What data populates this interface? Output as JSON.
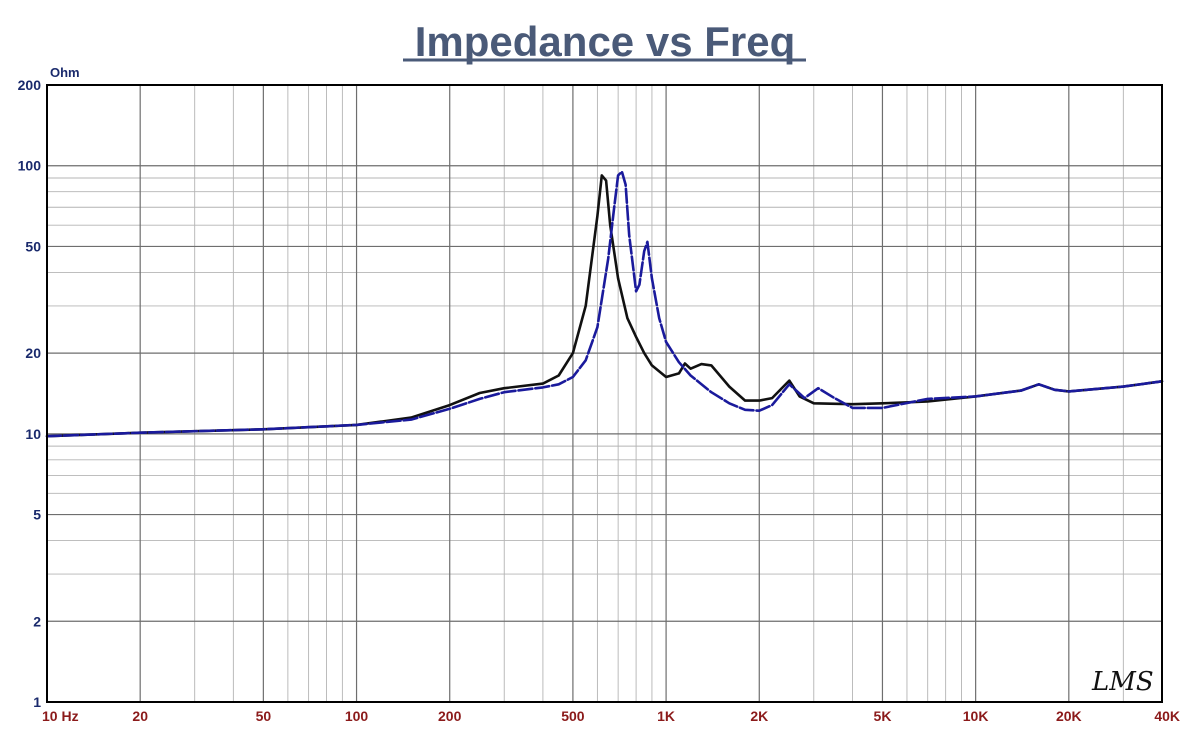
{
  "chart_data": {
    "type": "line",
    "title": "Impedance vs Freq",
    "ylabel": "Ohm",
    "x_scale": "log",
    "y_scale": "log",
    "xlim": [
      10,
      40000
    ],
    "ylim": [
      1,
      200
    ],
    "grid": true,
    "legend": "none",
    "x_ticks": [
      {
        "value": 10,
        "label": "10  Hz"
      },
      {
        "value": 20,
        "label": "20"
      },
      {
        "value": 50,
        "label": "50"
      },
      {
        "value": 100,
        "label": "100"
      },
      {
        "value": 200,
        "label": "200"
      },
      {
        "value": 500,
        "label": "500"
      },
      {
        "value": 1000,
        "label": "1K"
      },
      {
        "value": 2000,
        "label": "2K"
      },
      {
        "value": 5000,
        "label": "5K"
      },
      {
        "value": 10000,
        "label": "10K"
      },
      {
        "value": 20000,
        "label": "20K"
      },
      {
        "value": 40000,
        "label": "40K"
      }
    ],
    "y_ticks": [
      {
        "value": 1,
        "label": "1"
      },
      {
        "value": 2,
        "label": "2"
      },
      {
        "value": 5,
        "label": "5"
      },
      {
        "value": 10,
        "label": "10"
      },
      {
        "value": 20,
        "label": "20"
      },
      {
        "value": 50,
        "label": "50"
      },
      {
        "value": 100,
        "label": "100"
      },
      {
        "value": 200,
        "label": "200"
      }
    ],
    "series": [
      {
        "color": "#111111",
        "style": "solid",
        "points": [
          [
            10,
            9.8
          ],
          [
            20,
            10.1
          ],
          [
            50,
            10.4
          ],
          [
            100,
            10.8
          ],
          [
            150,
            11.5
          ],
          [
            200,
            12.8
          ],
          [
            250,
            14.2
          ],
          [
            300,
            14.8
          ],
          [
            400,
            15.4
          ],
          [
            450,
            16.5
          ],
          [
            500,
            20.0
          ],
          [
            550,
            30.0
          ],
          [
            600,
            65.0
          ],
          [
            620,
            92.0
          ],
          [
            640,
            88.0
          ],
          [
            660,
            60.0
          ],
          [
            700,
            38.0
          ],
          [
            750,
            27.0
          ],
          [
            800,
            23.0
          ],
          [
            850,
            20.0
          ],
          [
            900,
            18.0
          ],
          [
            1000,
            16.3
          ],
          [
            1100,
            16.8
          ],
          [
            1150,
            18.3
          ],
          [
            1200,
            17.5
          ],
          [
            1300,
            18.2
          ],
          [
            1400,
            18.0
          ],
          [
            1600,
            15.0
          ],
          [
            1800,
            13.3
          ],
          [
            2000,
            13.3
          ],
          [
            2200,
            13.6
          ],
          [
            2500,
            15.8
          ],
          [
            2700,
            13.8
          ],
          [
            3000,
            13.0
          ],
          [
            4000,
            12.9
          ],
          [
            5000,
            13.0
          ],
          [
            7000,
            13.2
          ],
          [
            10000,
            13.8
          ],
          [
            14000,
            14.5
          ],
          [
            16000,
            15.3
          ],
          [
            18000,
            14.6
          ],
          [
            20000,
            14.4
          ],
          [
            30000,
            15.0
          ],
          [
            40000,
            15.7
          ]
        ]
      },
      {
        "color": "#1a1a9c",
        "style": "dashed",
        "points": [
          [
            10,
            9.8
          ],
          [
            20,
            10.1
          ],
          [
            50,
            10.4
          ],
          [
            100,
            10.8
          ],
          [
            150,
            11.3
          ],
          [
            200,
            12.4
          ],
          [
            250,
            13.5
          ],
          [
            300,
            14.3
          ],
          [
            400,
            14.9
          ],
          [
            450,
            15.3
          ],
          [
            500,
            16.3
          ],
          [
            550,
            18.8
          ],
          [
            600,
            25.0
          ],
          [
            650,
            45.0
          ],
          [
            680,
            70.0
          ],
          [
            700,
            92.0
          ],
          [
            720,
            95.0
          ],
          [
            740,
            85.0
          ],
          [
            760,
            55.0
          ],
          [
            800,
            34.0
          ],
          [
            820,
            36.0
          ],
          [
            850,
            48.0
          ],
          [
            870,
            52.0
          ],
          [
            900,
            38.0
          ],
          [
            950,
            27.0
          ],
          [
            1000,
            22.0
          ],
          [
            1100,
            18.5
          ],
          [
            1200,
            16.5
          ],
          [
            1400,
            14.3
          ],
          [
            1600,
            13.0
          ],
          [
            1800,
            12.3
          ],
          [
            2000,
            12.2
          ],
          [
            2200,
            12.8
          ],
          [
            2500,
            15.3
          ],
          [
            2800,
            13.6
          ],
          [
            3100,
            14.8
          ],
          [
            3500,
            13.6
          ],
          [
            4000,
            12.5
          ],
          [
            5000,
            12.5
          ],
          [
            7000,
            13.5
          ],
          [
            10000,
            13.8
          ],
          [
            14000,
            14.5
          ],
          [
            16000,
            15.3
          ],
          [
            18000,
            14.6
          ],
          [
            20000,
            14.4
          ],
          [
            30000,
            15.0
          ],
          [
            40000,
            15.7
          ]
        ]
      }
    ]
  },
  "logo": {
    "text": "LMS"
  }
}
